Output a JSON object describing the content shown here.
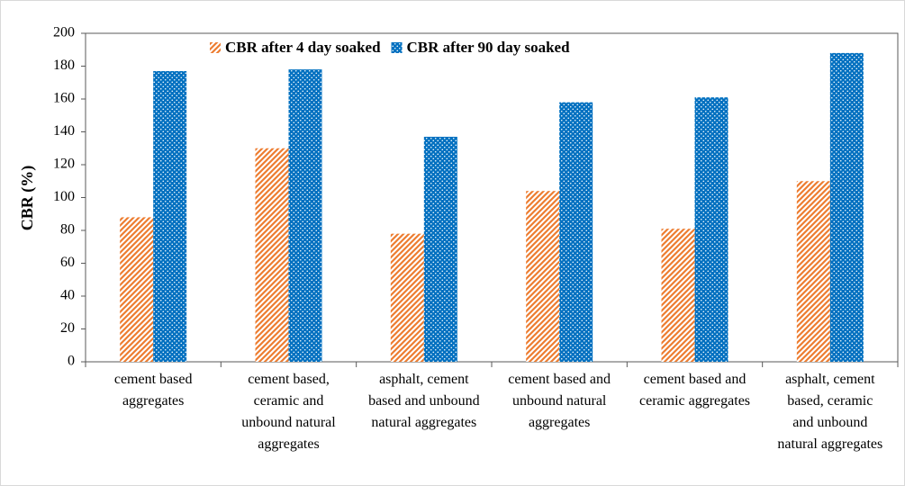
{
  "chart_data": {
    "type": "bar",
    "y_label": "CBR (%)",
    "categories": [
      "cement based aggregates",
      "cement based, ceramic and unbound natural aggregates",
      "asphalt, cement based and unbound natural aggregates",
      "cement based and unbound natural aggregates",
      "cement based and ceramic aggregates",
      "asphalt, cement based, ceramic and unbound natural aggregates"
    ],
    "series": [
      {
        "name": "CBR after 4 day soaked",
        "color": "#ed7d31",
        "pattern": "hatch",
        "values": [
          88,
          130,
          78,
          104,
          81,
          110
        ]
      },
      {
        "name": "CBR after 90 day soaked",
        "color": "#0070c0",
        "pattern": "dots",
        "values": [
          177,
          178,
          137,
          158,
          161,
          188
        ]
      }
    ],
    "ylim": [
      0,
      200
    ],
    "yticks": [
      0,
      20,
      40,
      60,
      80,
      100,
      120,
      140,
      160,
      180,
      200
    ],
    "grid": false,
    "legend": "top"
  }
}
